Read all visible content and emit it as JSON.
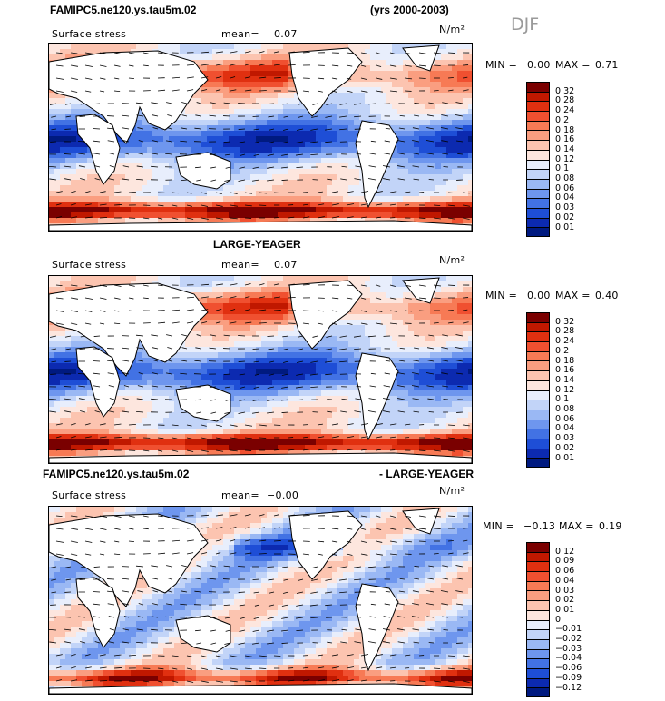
{
  "season": "DJF",
  "panels": [
    {
      "title_left": "FAMIPC5.ne120.ys.tau5m.02",
      "title_center": "",
      "title_right": "(yrs 2000-2003)",
      "field": "Surface stress",
      "mean_label": "mean=",
      "mean_value": "0.07",
      "units": "N/m²",
      "min_label": "MIN =",
      "min_value": "0.00",
      "max_label": "MAX =",
      "max_value": "0.71",
      "colorbar_labels": [
        "0.32",
        "0.28",
        "0.24",
        "0.2",
        "0.18",
        "0.16",
        "0.14",
        "0.12",
        "0.1",
        "0.08",
        "0.06",
        "0.04",
        "0.03",
        "0.02",
        "0.01"
      ]
    },
    {
      "title_left": "",
      "title_center": "LARGE-YEAGER",
      "title_right": "",
      "field": "Surface stress",
      "mean_label": "mean=",
      "mean_value": "0.07",
      "units": "N/m²",
      "min_label": "MIN =",
      "min_value": "0.00",
      "max_label": "MAX =",
      "max_value": "0.40",
      "colorbar_labels": [
        "0.32",
        "0.28",
        "0.24",
        "0.2",
        "0.18",
        "0.16",
        "0.14",
        "0.12",
        "0.1",
        "0.08",
        "0.06",
        "0.04",
        "0.03",
        "0.02",
        "0.01"
      ]
    },
    {
      "title_left": "FAMIPC5.ne120.ys.tau5m.02",
      "title_center": "",
      "title_right": "- LARGE-YEAGER",
      "field": "Surface stress",
      "mean_label": "mean=",
      "mean_value": "−0.00",
      "units": "N/m²",
      "min_label": "MIN =",
      "min_value": "−0.13",
      "max_label": "MAX =",
      "max_value": "0.19",
      "colorbar_labels": [
        "0.12",
        "0.09",
        "0.06",
        "0.04",
        "0.03",
        "0.02",
        "0.01",
        "0",
        "−0.01",
        "−0.02",
        "−0.03",
        "−0.04",
        "−0.06",
        "−0.09",
        "−0.12"
      ]
    }
  ],
  "colors": {
    "scale": [
      "#7a0000",
      "#c01800",
      "#e03010",
      "#f05030",
      "#f77a55",
      "#fa9e80",
      "#fcc4b0",
      "#fde6de",
      "#e8eefc",
      "#c2d4f8",
      "#9ab8f4",
      "#6e96ee",
      "#4272e4",
      "#1e4ed6",
      "#0c2ab0",
      "#001a80"
    ],
    "land": "#ffffff",
    "coast": "#000000"
  }
}
